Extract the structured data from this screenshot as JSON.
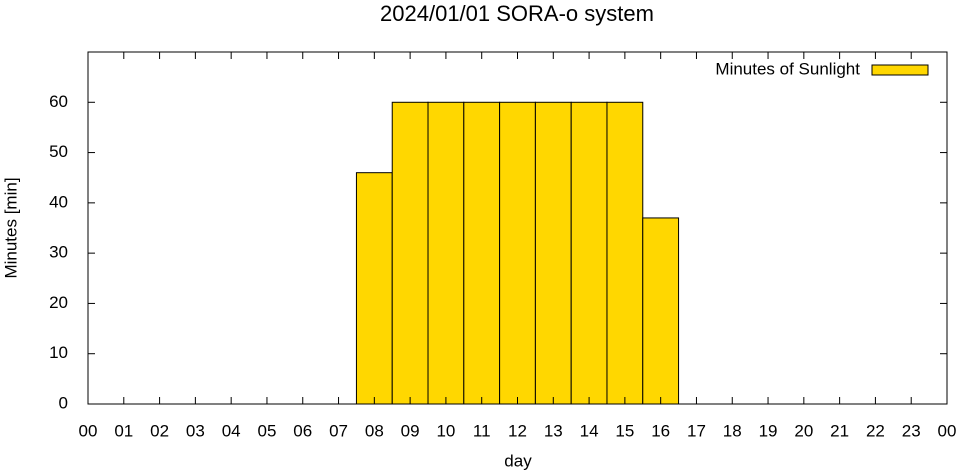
{
  "chart_data": {
    "type": "bar",
    "title": "2024/01/01 SORA-o system",
    "xlabel": "day",
    "ylabel": "Minutes [min]",
    "x": [
      8,
      9,
      10,
      11,
      12,
      13,
      14,
      15,
      16
    ],
    "series": [
      {
        "name": "Minutes of Sunlight",
        "color": "#ffd700",
        "values": [
          46,
          60,
          60,
          60,
          60,
          60,
          60,
          60,
          37
        ]
      }
    ],
    "xlim": [
      0,
      24
    ],
    "xticks": [
      {
        "value": 0,
        "label": "00"
      },
      {
        "value": 1,
        "label": "01"
      },
      {
        "value": 2,
        "label": "02"
      },
      {
        "value": 3,
        "label": "03"
      },
      {
        "value": 4,
        "label": "04"
      },
      {
        "value": 5,
        "label": "05"
      },
      {
        "value": 6,
        "label": "06"
      },
      {
        "value": 7,
        "label": "07"
      },
      {
        "value": 8,
        "label": "08"
      },
      {
        "value": 9,
        "label": "09"
      },
      10,
      11,
      12,
      13,
      14,
      15,
      16,
      17,
      18,
      19,
      20,
      21,
      22,
      23,
      {
        "value": 24,
        "label": "00"
      }
    ],
    "ylim": [
      0,
      70
    ],
    "yticks": [
      0,
      10,
      20,
      30,
      40,
      50,
      60
    ],
    "legend": "top-right",
    "grid": false
  }
}
